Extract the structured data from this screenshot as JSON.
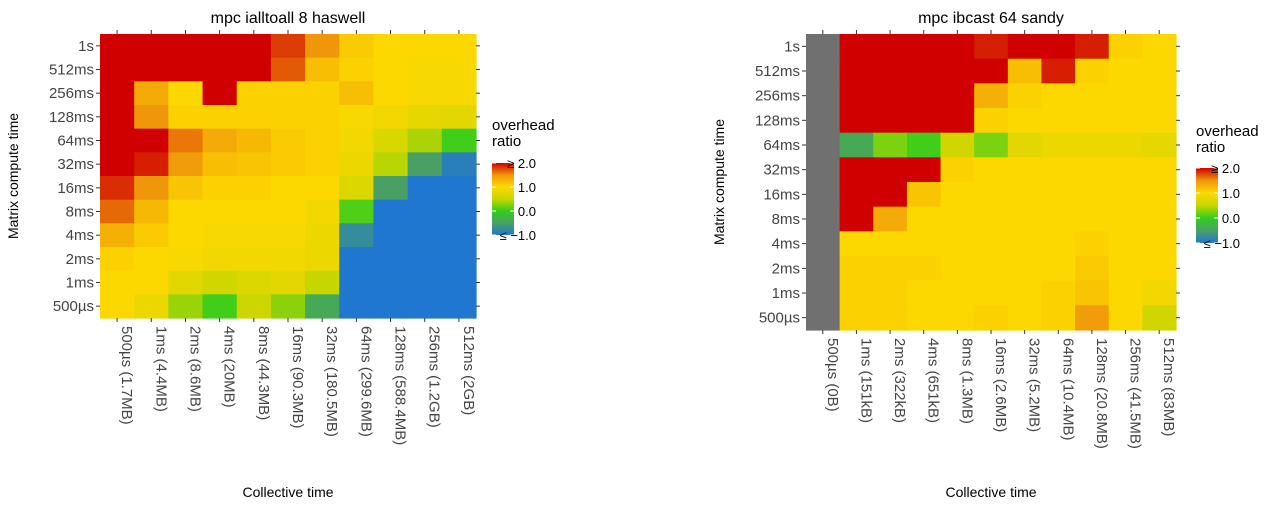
{
  "legend": {
    "title_lines": [
      "overhead",
      "ratio"
    ],
    "ticks": [
      {
        "label": "≥ 2.0",
        "value": 2.0
      },
      {
        "label": "1.0",
        "value": 1.0
      },
      {
        "label": "0.0",
        "value": 0.0
      },
      {
        "label": "≤ −1.0",
        "value": -1.0
      }
    ],
    "range": [
      -1.0,
      2.0
    ],
    "color_stops": [
      {
        "value": -1.0,
        "color": "#1f77d0"
      },
      {
        "value": -0.5,
        "color": "#4aa064"
      },
      {
        "value": 0.0,
        "color": "#32cd1e"
      },
      {
        "value": 0.5,
        "color": "#c8d600"
      },
      {
        "value": 1.0,
        "color": "#fcd800"
      },
      {
        "value": 1.5,
        "color": "#f0960a"
      },
      {
        "value": 2.0,
        "color": "#d00000"
      }
    ],
    "na_color": "#707070"
  },
  "chart_data": [
    {
      "type": "heatmap",
      "title": "mpc ialltoall 8 haswell",
      "xlabel": "Collective time",
      "ylabel": "Matrix compute time",
      "x_categories": [
        "500µs (1.7MB)",
        "1ms (4.4MB)",
        "2ms (8.6MB)",
        "4ms (20MB)",
        "8ms (44.3MB)",
        "16ms (90.3MB)",
        "32ms (180.5MB)",
        "64ms (299.6MB)",
        "128ms (588.4MB)",
        "256ms (1.2GB)",
        "512ms (2GB)"
      ],
      "y_categories": [
        "1s",
        "512ms",
        "256ms",
        "128ms",
        "64ms",
        "32ms",
        "16ms",
        "8ms",
        "4ms",
        "2ms",
        "1ms",
        "500µs"
      ],
      "values": [
        [
          2.0,
          2.0,
          2.0,
          2.0,
          2.0,
          1.8,
          1.5,
          1.1,
          1.0,
          1.0,
          1.0
        ],
        [
          2.0,
          2.0,
          2.0,
          2.0,
          2.0,
          1.7,
          1.2,
          1.05,
          1.0,
          0.95,
          0.95
        ],
        [
          2.0,
          1.35,
          1.0,
          2.0,
          1.05,
          1.05,
          1.05,
          1.2,
          1.0,
          0.95,
          0.95
        ],
        [
          2.0,
          1.5,
          1.05,
          1.05,
          1.05,
          1.05,
          1.05,
          0.95,
          0.9,
          0.8,
          0.75
        ],
        [
          2.0,
          2.0,
          1.6,
          1.35,
          1.25,
          1.1,
          1.05,
          0.9,
          0.65,
          0.4,
          0.05
        ],
        [
          2.0,
          1.9,
          1.45,
          1.2,
          1.15,
          1.1,
          1.05,
          0.85,
          0.45,
          -0.5,
          -0.9
        ],
        [
          1.85,
          1.5,
          1.15,
          1.05,
          1.05,
          1.0,
          1.0,
          0.7,
          -0.5,
          -1.0,
          -1.0
        ],
        [
          1.65,
          1.25,
          1.0,
          1.0,
          1.0,
          1.0,
          0.9,
          0.1,
          -1.0,
          -1.0,
          -1.0
        ],
        [
          1.3,
          1.1,
          1.0,
          0.95,
          0.95,
          0.95,
          0.85,
          -0.75,
          -1.0,
          -1.0,
          -1.0
        ],
        [
          1.05,
          1.0,
          0.95,
          0.9,
          0.9,
          0.9,
          0.85,
          -1.0,
          -1.0,
          -1.0,
          -1.0
        ],
        [
          1.0,
          1.0,
          0.75,
          0.6,
          0.7,
          0.75,
          0.5,
          -1.0,
          -1.0,
          -1.0,
          -1.0
        ],
        [
          1.0,
          0.85,
          0.35,
          0.05,
          0.55,
          0.3,
          -0.4,
          -1.0,
          -1.0,
          -1.0,
          -1.0
        ]
      ],
      "legend_position": "right",
      "grid": false
    },
    {
      "type": "heatmap",
      "title": "mpc ibcast 64 sandy",
      "xlabel": "Collective time",
      "ylabel": "Matrix compute time",
      "x_categories": [
        "500µs (0B)",
        "1ms (151kB)",
        "2ms (322kB)",
        "4ms (651kB)",
        "8ms (1.3MB)",
        "16ms (2.6MB)",
        "32ms (5.2MB)",
        "64ms (10.4MB)",
        "128ms (20.8MB)",
        "256ms (41.5MB)",
        "512ms (83MB)"
      ],
      "y_categories": [
        "1s",
        "512ms",
        "256ms",
        "128ms",
        "64ms",
        "32ms",
        "16ms",
        "8ms",
        "4ms",
        "2ms",
        "1ms",
        "500µs"
      ],
      "values": [
        [
          null,
          2.0,
          2.0,
          2.0,
          2.0,
          1.9,
          2.0,
          2.0,
          1.9,
          1.05,
          1.0
        ],
        [
          null,
          2.0,
          2.0,
          2.0,
          2.0,
          2.0,
          1.2,
          1.9,
          1.05,
          1.0,
          1.0
        ],
        [
          null,
          2.0,
          2.0,
          2.0,
          2.0,
          1.3,
          1.05,
          1.0,
          1.0,
          1.0,
          1.0
        ],
        [
          null,
          2.0,
          2.0,
          2.0,
          2.0,
          1.05,
          1.0,
          1.0,
          1.0,
          1.0,
          1.0
        ],
        [
          null,
          -0.4,
          0.25,
          0.05,
          0.6,
          0.25,
          0.75,
          0.85,
          0.85,
          0.85,
          0.8
        ],
        [
          null,
          2.0,
          2.0,
          2.0,
          1.05,
          1.0,
          1.0,
          1.0,
          1.0,
          1.0,
          1.0
        ],
        [
          null,
          2.0,
          2.0,
          1.15,
          1.0,
          1.0,
          1.0,
          1.0,
          1.0,
          1.0,
          1.0
        ],
        [
          null,
          2.0,
          1.35,
          1.0,
          1.0,
          1.0,
          1.0,
          1.0,
          1.0,
          1.0,
          1.0
        ],
        [
          null,
          1.0,
          1.0,
          1.0,
          1.0,
          1.0,
          1.0,
          1.0,
          1.05,
          1.0,
          1.0
        ],
        [
          null,
          1.05,
          1.05,
          1.05,
          1.0,
          1.0,
          1.0,
          1.0,
          1.1,
          1.0,
          1.0
        ],
        [
          null,
          1.05,
          1.05,
          1.0,
          1.0,
          1.0,
          1.0,
          1.05,
          1.15,
          1.0,
          0.9
        ],
        [
          null,
          1.05,
          1.05,
          1.0,
          1.0,
          1.05,
          1.0,
          1.05,
          1.45,
          1.0,
          0.6
        ]
      ],
      "legend_position": "right",
      "grid": false
    }
  ]
}
